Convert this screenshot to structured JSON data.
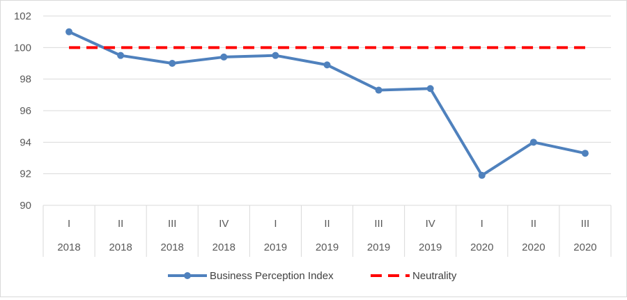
{
  "chart_data": {
    "type": "line",
    "title": "",
    "xlabel": "",
    "ylabel": "",
    "ylim": [
      90,
      102
    ],
    "yticks": [
      90,
      92,
      94,
      96,
      98,
      100,
      102
    ],
    "grid": "horizontal",
    "legend_position": "bottom",
    "categories": [
      {
        "quarter": "I",
        "year": "2018"
      },
      {
        "quarter": "II",
        "year": "2018"
      },
      {
        "quarter": "III",
        "year": "2018"
      },
      {
        "quarter": "IV",
        "year": "2018"
      },
      {
        "quarter": "I",
        "year": "2019"
      },
      {
        "quarter": "II",
        "year": "2019"
      },
      {
        "quarter": "III",
        "year": "2019"
      },
      {
        "quarter": "IV",
        "year": "2019"
      },
      {
        "quarter": "I",
        "year": "2020"
      },
      {
        "quarter": "II",
        "year": "2020"
      },
      {
        "quarter": "III",
        "year": "2020"
      }
    ],
    "series": [
      {
        "name": "Business Perception Index",
        "color": "#4f81bd",
        "style": "solid-with-markers",
        "values": [
          101.0,
          99.5,
          99.0,
          99.4,
          99.5,
          98.9,
          97.3,
          97.4,
          91.9,
          94.0,
          93.3
        ]
      },
      {
        "name": "Neutrality",
        "color": "#ff0000",
        "style": "dashed",
        "values": [
          100,
          100,
          100,
          100,
          100,
          100,
          100,
          100,
          100,
          100,
          100
        ]
      }
    ],
    "gridline_color": "#d9d9d9",
    "text_color": "#595959"
  }
}
